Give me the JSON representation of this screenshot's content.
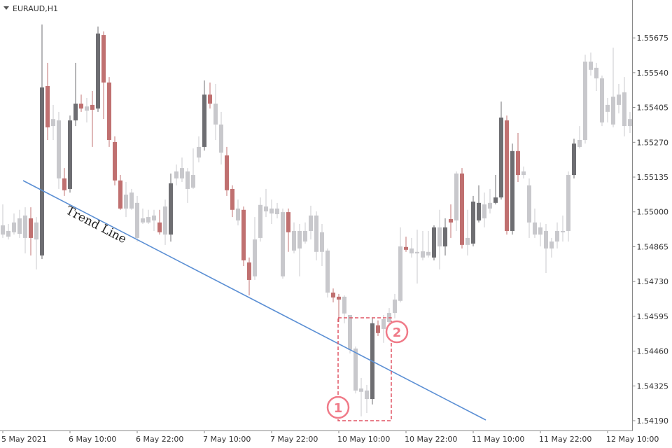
{
  "chart_data": {
    "type": "candlestick",
    "title": "EURAUD,H1",
    "annotations": {
      "trend_line": "Trend Line",
      "marker_1": "1",
      "marker_2": "2"
    },
    "categories": [
      "5 May 2021",
      null,
      null,
      null,
      null,
      null,
      null,
      null,
      null,
      null,
      null,
      null,
      "6 May 10:00",
      null,
      null,
      null,
      null,
      null,
      null,
      null,
      null,
      null,
      null,
      null,
      "6 May 22:00",
      null,
      null,
      null,
      null,
      null,
      null,
      null,
      null,
      null,
      null,
      null,
      "7 May 10:00",
      null,
      null,
      null,
      null,
      null,
      null,
      null,
      null,
      null,
      null,
      null,
      "7 May 22:00",
      null,
      null,
      null,
      null,
      null,
      null,
      null,
      null,
      null,
      null,
      null,
      "10 May 10:00",
      null,
      null,
      null,
      null,
      null,
      null,
      null,
      null,
      null,
      null,
      null,
      "10 May 22:00",
      null,
      null,
      null,
      null,
      null,
      null,
      null,
      null,
      null,
      null,
      null,
      "11 May 10:00",
      null,
      null,
      null,
      null,
      null,
      null,
      null,
      null,
      null,
      null,
      null,
      "11 May 22:00",
      null,
      null,
      null,
      null,
      null,
      null,
      null,
      null,
      null,
      null,
      null,
      "12 May 10:00",
      null,
      null,
      null,
      null
    ],
    "open": [
      1.54948,
      1.54926,
      1.54959,
      1.54975,
      1.54986,
      1.54975,
      1.54959,
      1.54831,
      1.55488,
      1.5536,
      1.55355,
      1.5513,
      1.55089,
      1.55355,
      1.5542,
      1.55409,
      1.55415,
      1.55401,
      1.55686,
      1.55502,
      1.55271,
      1.55122,
      1.55067,
      1.55075,
      1.55035,
      1.54975,
      1.5498,
      1.54986,
      1.54959,
      1.55021,
      1.54912,
      1.5513,
      1.5517,
      1.55157,
      1.55143,
      1.55252,
      1.55252,
      1.55455,
      1.5542,
      1.55339,
      1.55219,
      1.55089,
      1.55013,
      1.55008,
      1.54804,
      1.54893,
      1.55027,
      1.55021,
      1.55013,
      1.55013,
      1.54999,
      1.54999,
      1.54926,
      1.54926,
      1.54926,
      1.54986,
      1.54986,
      1.54921,
      1.5485,
      1.54687,
      1.54671,
      1.54671,
      1.546,
      1.5447,
      1.54315,
      1.54307,
      1.54274,
      1.5456,
      1.54584,
      1.54608,
      1.5466,
      1.54866,
      1.54864,
      1.54858,
      1.54845,
      1.54847,
      1.54845,
      1.54823,
      1.5494,
      1.54866,
      1.54972,
      1.55149,
      1.55149,
      1.54899,
      1.54877,
      1.54967,
      1.55029,
      1.55035,
      1.55035,
      1.55056,
      1.55355,
      1.54926,
      1.55236,
      1.55157,
      1.55103,
      1.54959,
      1.5494,
      1.54926,
      1.54885,
      1.54926,
      1.54926,
      1.54926,
      1.55143,
      1.55279,
      1.55583,
      1.55583,
      1.55559,
      1.55518,
      1.55415,
      1.55447,
      1.55455,
      1.55464,
      1.5536
    ],
    "high": [
      1.55029,
      1.54953,
      1.54994,
      1.55008,
      1.55018,
      1.55018,
      1.5498,
      1.55727,
      1.55578,
      1.55415,
      1.55388,
      1.5517,
      1.55374,
      1.55578,
      1.55455,
      1.55442,
      1.55469,
      1.55719,
      1.557,
      1.55523,
      1.55293,
      1.55143,
      1.55116,
      1.55089,
      1.55062,
      1.55013,
      1.55008,
      1.55008,
      1.55008,
      1.55048,
      1.55149,
      1.55184,
      1.55211,
      1.5517,
      1.55246,
      1.55293,
      1.5551,
      1.55502,
      1.55496,
      1.55388,
      1.55252,
      1.55103,
      1.55048,
      1.55021,
      1.54823,
      1.5498,
      1.55056,
      1.55089,
      1.55048,
      1.55035,
      1.55013,
      1.55013,
      1.54959,
      1.54953,
      1.54959,
      1.55024,
      1.55002,
      1.54953,
      1.54858,
      1.54703,
      1.54682,
      1.54676,
      1.546,
      1.54478,
      1.54356,
      1.54329,
      1.54587,
      1.54579,
      1.546,
      1.54627,
      1.54682,
      1.5494,
      1.54904,
      1.54899,
      1.54931,
      1.54926,
      1.54926,
      1.54948,
      1.55008,
      1.54975,
      1.55029,
      1.55157,
      1.5517,
      1.55008,
      1.55062,
      1.55103,
      1.55075,
      1.55089,
      1.55143,
      1.55428,
      1.55374,
      1.55265,
      1.55306,
      1.55176,
      1.5513,
      1.55013,
      1.54959,
      1.54953,
      1.54899,
      1.54959,
      1.54986,
      1.55157,
      1.55284,
      1.55333,
      1.5561,
      1.55618,
      1.55578,
      1.55529,
      1.55442,
      1.55637,
      1.55496,
      1.55523,
      1.55388
    ],
    "low": [
      1.54899,
      1.54893,
      1.54912,
      1.54899,
      1.54839,
      1.54831,
      1.54777,
      1.54817,
      1.55279,
      1.55279,
      1.55089,
      1.55062,
      1.55075,
      1.55333,
      1.55388,
      1.55347,
      1.55252,
      1.55388,
      1.5536,
      1.55252,
      1.55103,
      1.55008,
      1.5498,
      1.55008,
      1.54885,
      1.54953,
      1.54953,
      1.54926,
      1.54912,
      1.54872,
      1.54885,
      1.55103,
      1.55116,
      1.55035,
      1.55089,
      1.55192,
      1.55238,
      1.55401,
      1.55279,
      1.55184,
      1.55062,
      1.5498,
      1.54948,
      1.5479,
      1.54676,
      1.54736,
      1.54885,
      1.5498,
      1.54953,
      1.54975,
      1.54741,
      1.54845,
      1.54839,
      1.5475,
      1.54877,
      1.54893,
      1.54812,
      1.5479,
      1.54668,
      1.54649,
      1.54573,
      1.54568,
      1.54451,
      1.54296,
      1.54207,
      1.5422,
      1.54253,
      1.54519,
      1.54492,
      1.54546,
      1.54587,
      1.54649,
      1.54845,
      1.54823,
      1.54722,
      1.54812,
      1.54823,
      1.54812,
      1.54777,
      1.54831,
      1.54899,
      1.54926,
      1.54858,
      1.54831,
      1.54866,
      1.54959,
      1.5494,
      1.54994,
      1.55029,
      1.55048,
      1.54912,
      1.54912,
      1.55116,
      1.5513,
      1.54899,
      1.54899,
      1.54866,
      1.54763,
      1.54823,
      1.54858,
      1.54885,
      1.54885,
      1.5513,
      1.55246,
      1.55265,
      1.55529,
      1.55469,
      1.55333,
      1.55347,
      1.55328,
      1.55382,
      1.55293,
      1.55306
    ],
    "close": [
      1.54912,
      1.54904,
      1.54921,
      1.54915,
      1.54899,
      1.54899,
      1.54893,
      1.55483,
      1.55328,
      1.55333,
      1.5513,
      1.55084,
      1.55355,
      1.5542,
      1.55401,
      1.55393,
      1.55396,
      1.55692,
      1.55502,
      1.55279,
      1.55122,
      1.55013,
      1.55013,
      1.55013,
      1.54899,
      1.54959,
      1.54959,
      1.54967,
      1.54921,
      1.54912,
      1.55111,
      1.55157,
      1.5513,
      1.55089,
      1.55094,
      1.55211,
      1.55455,
      1.5542,
      1.55339,
      1.5523,
      1.55084,
      1.55008,
      1.54967,
      1.54812,
      1.54736,
      1.5475,
      1.54899,
      1.55002,
      1.54994,
      1.54991,
      1.5475,
      1.54921,
      1.5485,
      1.54858,
      1.54885,
      1.54926,
      1.54845,
      1.54845,
      1.54687,
      1.54668,
      1.5466,
      1.54606,
      1.54465,
      1.54307,
      1.54302,
      1.54274,
      1.54568,
      1.5453,
      1.54546,
      1.54573,
      1.54608,
      1.54655,
      1.54853,
      1.54839,
      1.54839,
      1.54823,
      1.54831,
      1.5494,
      1.54866,
      1.5494,
      1.54959,
      1.54967,
      1.54872,
      1.54872,
      1.5504,
      1.55035,
      1.54975,
      1.55013,
      1.55056,
      1.55366,
      1.54926,
      1.55236,
      1.55143,
      1.55143,
      1.54959,
      1.54912,
      1.54912,
      1.54858,
      1.54858,
      1.54885,
      1.54921,
      1.55143,
      1.55265,
      1.55252,
      1.55279,
      1.55551,
      1.55518,
      1.55347,
      1.55388,
      1.55339,
      1.55415,
      1.55333,
      1.55333
    ],
    "colors": [
      "#c8c8cc",
      "#c8c8cc",
      "#c8c8cc",
      "#c8c8cc",
      "#c8c8cc",
      "#c07070",
      "#c8c8cc",
      "#6e6e72",
      "#c07070",
      "#c8c8cc",
      "#c8c8cc",
      "#c07070",
      "#6e6e72",
      "#6e6e72",
      "#c07070",
      "#c8c8cc",
      "#c07070",
      "#6e6e72",
      "#c07070",
      "#c07070",
      "#c07070",
      "#c07070",
      "#c8c8cc",
      "#c8c8cc",
      "#c8c8cc",
      "#c8c8cc",
      "#c8c8cc",
      "#c8c8cc",
      "#c07070",
      "#c8c8cc",
      "#6e6e72",
      "#c8c8cc",
      "#c8c8cc",
      "#c8c8cc",
      "#c8c8cc",
      "#c8c8cc",
      "#6e6e72",
      "#c07070",
      "#c8c8cc",
      "#c8c8cc",
      "#c07070",
      "#c07070",
      "#c8c8cc",
      "#c07070",
      "#c07070",
      "#c8c8cc",
      "#c8c8cc",
      "#c8c8cc",
      "#c8c8cc",
      "#c8c8cc",
      "#c8c8cc",
      "#c07070",
      "#c8c8cc",
      "#c8c8cc",
      "#c8c8cc",
      "#c8c8cc",
      "#c8c8cc",
      "#c8c8cc",
      "#c8c8cc",
      "#c07070",
      "#c07070",
      "#c8c8cc",
      "#c8c8cc",
      "#c8c8cc",
      "#c8c8cc",
      "#c8c8cc",
      "#6e6e72",
      "#c07070",
      "#c8c8cc",
      "#c8c8cc",
      "#c8c8cc",
      "#c8c8cc",
      "#c07070",
      "#c8c8cc",
      "#c8c8cc",
      "#c8c8cc",
      "#c8c8cc",
      "#6e6e72",
      "#c8c8cc",
      "#6e6e72",
      "#c07070",
      "#c8c8cc",
      "#c07070",
      "#c8c8cc",
      "#6e6e72",
      "#6e6e72",
      "#c8c8cc",
      "#c8c8cc",
      "#6e6e72",
      "#6e6e72",
      "#c07070",
      "#6e6e72",
      "#c07070",
      "#c8c8cc",
      "#c8c8cc",
      "#c8c8cc",
      "#c8c8cc",
      "#c8c8cc",
      "#c8c8cc",
      "#c8c8cc",
      "#c8c8cc",
      "#c8c8cc",
      "#6e6e72",
      "#c8c8cc",
      "#c8c8cc",
      "#c8c8cc",
      "#c8c8cc",
      "#c8c8cc",
      "#c8c8cc",
      "#c8c8cc",
      "#c8c8cc",
      "#c8c8cc",
      "#c8c8cc"
    ],
    "ylim": [
      1.54152,
      1.55822
    ],
    "yticks": [
      1.55675,
      {
        "value": 1.5554,
        "label": "1.55540"
      },
      1.55405,
      {
        "value": 1.5527,
        "label": "1.55270"
      },
      1.55135,
      {
        "value": 1.55,
        "label": "1.55000"
      },
      1.54865,
      {
        "value": 1.5473,
        "label": "1.54730"
      },
      1.54595,
      {
        "value": 1.5446,
        "label": "1.54460"
      },
      1.54325,
      {
        "value": 1.5419,
        "label": "1.54190"
      }
    ],
    "grid": false
  }
}
